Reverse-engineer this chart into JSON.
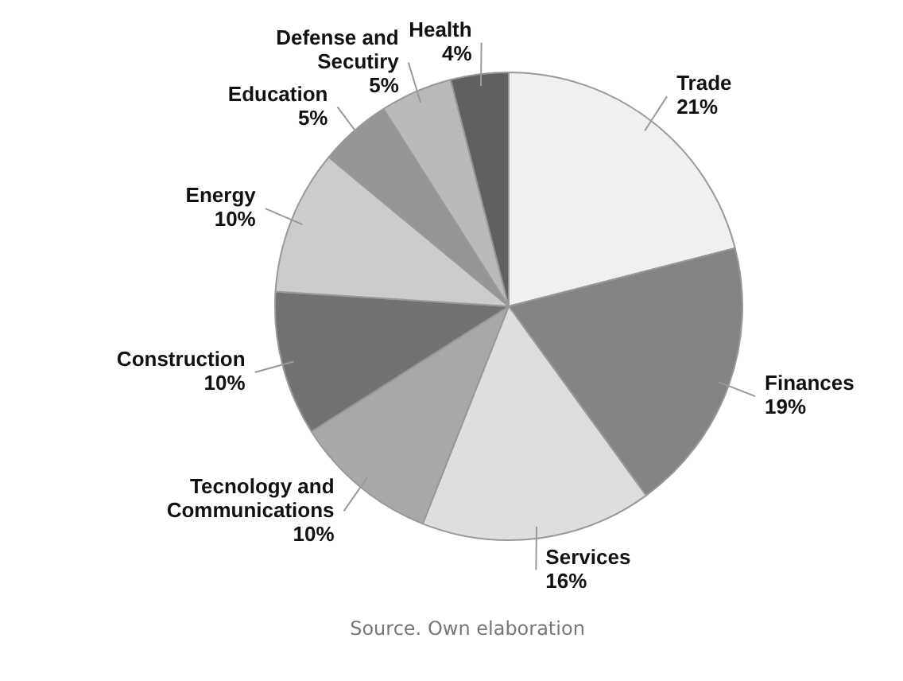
{
  "chart_data": {
    "type": "pie",
    "categories": [
      "Trade",
      "Finances",
      "Services",
      "Tecnology and Communications",
      "Construction",
      "Energy",
      "Education",
      "Defense and Secutiry",
      "Health"
    ],
    "values": [
      21,
      19,
      16,
      10,
      10,
      10,
      5,
      5,
      4
    ],
    "colors": [
      "#f0f0f0",
      "#848484",
      "#dedede",
      "#a8a8a8",
      "#727272",
      "#cccccc",
      "#969696",
      "#bababa",
      "#606060"
    ],
    "value_labels": [
      "21%",
      "19%",
      "16%",
      "10%",
      "10%",
      "10%",
      "5%",
      "5%",
      "4%"
    ],
    "legend": false,
    "annotations": [
      "Source. Own elaboration"
    ]
  }
}
